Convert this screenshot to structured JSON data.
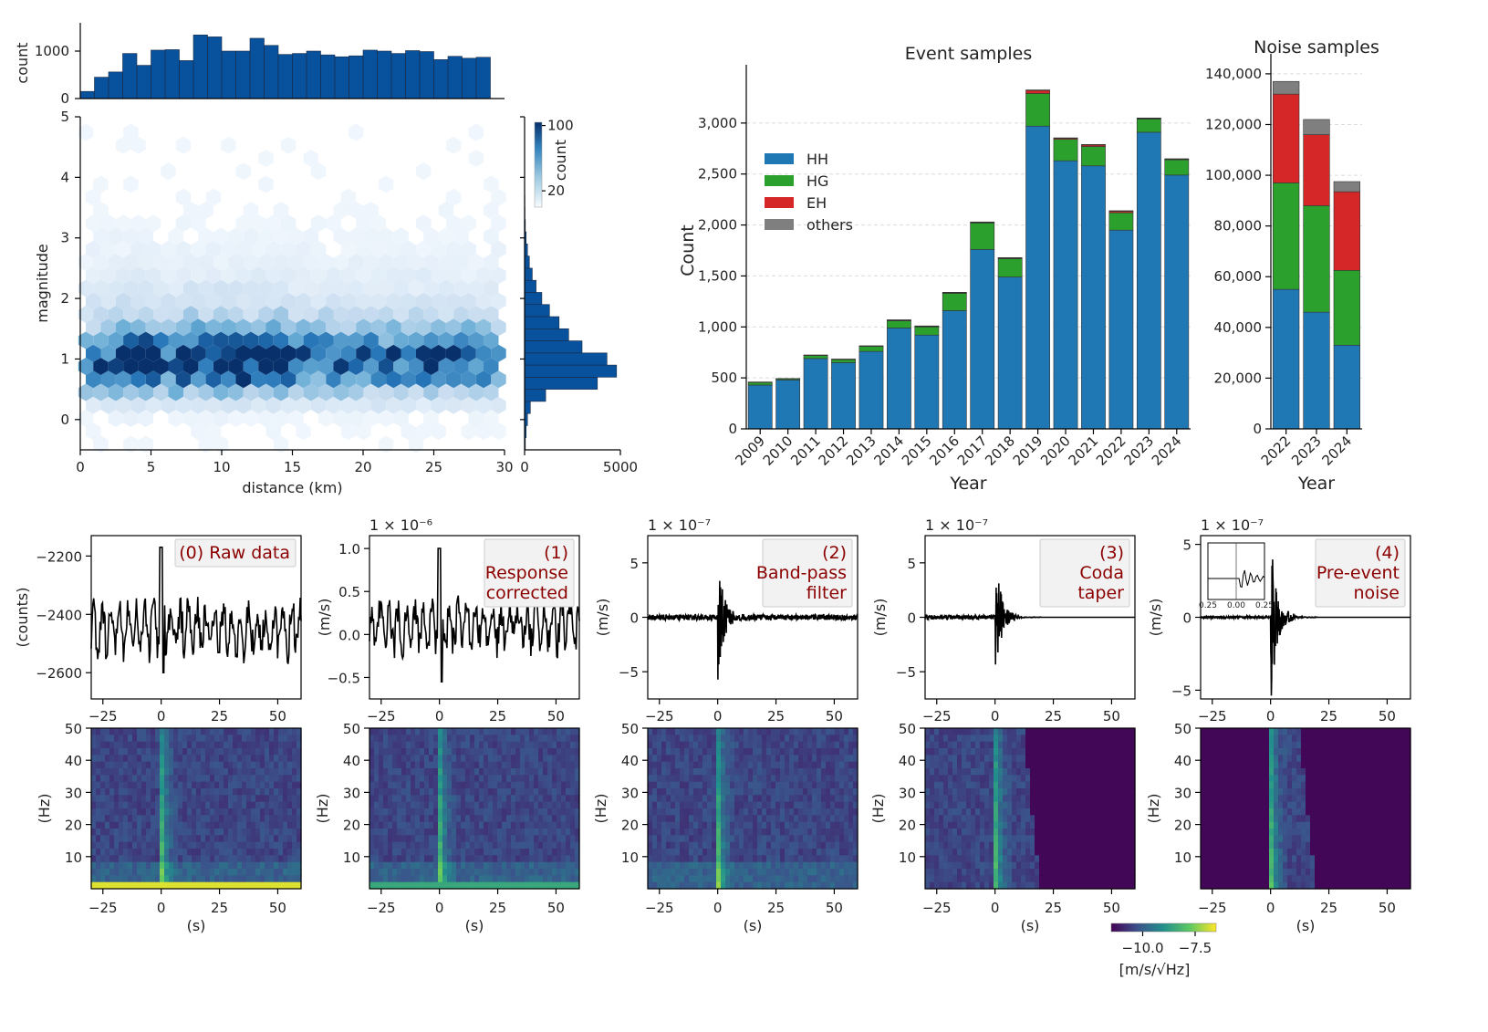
{
  "chart_data": [
    {
      "type": "heatmap",
      "subtype": "hexbin-joint",
      "xlabel": "distance (km)",
      "ylabel": "magnitude",
      "xlim": [
        0,
        30
      ],
      "ylim": [
        -0.5,
        5
      ],
      "xticks": [
        "0",
        "5",
        "10",
        "15",
        "20",
        "25",
        "30"
      ],
      "yticks": [
        "0",
        "1",
        "2",
        "3",
        "4",
        "5"
      ],
      "colorbar": {
        "label": "count",
        "ticks": [
          "20",
          "100"
        ],
        "range": [
          20,
          100
        ],
        "cmap": "Blues"
      },
      "top_histogram": {
        "ylabel": "count",
        "yticks": [
          "0",
          "1000"
        ],
        "ylim": [
          0,
          1500
        ],
        "bin_width_km": 1,
        "values": [
          150,
          450,
          560,
          950,
          700,
          1020,
          1030,
          800,
          1340,
          1300,
          1000,
          1000,
          1270,
          1120,
          930,
          950,
          1000,
          920,
          880,
          900,
          1020,
          1000,
          950,
          1010,
          990,
          820,
          890,
          850,
          870
        ]
      },
      "right_histogram": {
        "xticks": [
          "0",
          "5000"
        ],
        "xlim": [
          0,
          5000
        ],
        "bin_width": 0.2,
        "bin_start": -0.5,
        "values": [
          40,
          80,
          150,
          300,
          1100,
          3800,
          4800,
          4300,
          3000,
          2300,
          1800,
          1300,
          900,
          600,
          400,
          250,
          150,
          80,
          40,
          20,
          15,
          10,
          5,
          3,
          2,
          1,
          1
        ]
      }
    },
    {
      "type": "bar",
      "stacked": true,
      "title": "Event samples",
      "xlabel": "Year",
      "ylabel": "Count",
      "ylim": [
        0,
        3500
      ],
      "yticks": [
        "0",
        "500",
        "1,000",
        "1,500",
        "2,000",
        "2,500",
        "3,000"
      ],
      "grid": "horizontal-dashed",
      "legend": "upper-left",
      "categories": [
        "2009",
        "2010",
        "2011",
        "2012",
        "2013",
        "2014",
        "2015",
        "2016",
        "2017",
        "2018",
        "2019",
        "2020",
        "2021",
        "2022",
        "2023",
        "2024"
      ],
      "series": [
        {
          "name": "HH",
          "color": "#1f77b4",
          "values": [
            430,
            480,
            690,
            650,
            760,
            990,
            920,
            1160,
            1760,
            1490,
            2970,
            2630,
            2580,
            1950,
            2910,
            2490
          ]
        },
        {
          "name": "HG",
          "color": "#2ca02c",
          "values": [
            25,
            10,
            30,
            30,
            50,
            70,
            80,
            170,
            260,
            180,
            320,
            210,
            190,
            170,
            130,
            150
          ]
        },
        {
          "name": "EH",
          "color": "#d62728",
          "values": [
            3,
            2,
            3,
            3,
            3,
            5,
            5,
            5,
            5,
            5,
            30,
            10,
            15,
            15,
            5,
            5
          ]
        },
        {
          "name": "others",
          "color": "#7f7f7f",
          "values": [
            2,
            2,
            2,
            2,
            2,
            5,
            5,
            5,
            5,
            5,
            5,
            5,
            5,
            5,
            5,
            5
          ]
        }
      ]
    },
    {
      "type": "bar",
      "stacked": true,
      "title": "Noise samples",
      "xlabel": "Year",
      "ylim": [
        0,
        145000
      ],
      "yticks": [
        "0",
        "20,000",
        "40,000",
        "60,000",
        "80,000",
        "100,000",
        "120,000",
        "140,000"
      ],
      "grid": "horizontal-dashed",
      "categories": [
        "2022",
        "2023",
        "2024"
      ],
      "series": [
        {
          "name": "HH",
          "color": "#1f77b4",
          "values": [
            55000,
            46000,
            33000
          ]
        },
        {
          "name": "HG",
          "color": "#2ca02c",
          "values": [
            42000,
            42000,
            29500
          ]
        },
        {
          "name": "EH",
          "color": "#d62728",
          "values": [
            35000,
            28000,
            31000
          ]
        },
        {
          "name": "others",
          "color": "#7f7f7f",
          "values": [
            5000,
            6000,
            4000
          ]
        }
      ]
    },
    {
      "type": "line",
      "subtype": "waveform-and-spectrogram-panels",
      "x_tick_labels": [
        "−25",
        "0",
        "25",
        "50"
      ],
      "xlim": [
        -30,
        60
      ],
      "spectrogram_ylabel": "(Hz)",
      "spectrogram_yticks": [
        "10",
        "20",
        "30",
        "40",
        "50"
      ],
      "spectrogram_xlabel": "(s)",
      "colorbar": {
        "ticks": [
          "−10.0",
          "−7.5"
        ],
        "label": "[m/s/√Hz]",
        "cmap": "viridis"
      },
      "panels": [
        {
          "label": "(0) Raw data",
          "ylabel": "(counts)",
          "multiplier": "",
          "yticks": [
            "−2600",
            "−2400",
            "−2200"
          ],
          "yvals": [
            -2600,
            -2400,
            -2200
          ],
          "ylim": [
            -2690,
            -2130
          ],
          "style": "raw"
        },
        {
          "label": "(1)\nResponse\ncorrected",
          "ylabel": "(m/s)",
          "multiplier": "1 × 10⁻⁶",
          "yticks": [
            "−0.5",
            "0.0",
            "0.5",
            "1.0"
          ],
          "yvals": [
            -0.5,
            0,
            0.5,
            1.0
          ],
          "ylim": [
            -0.75,
            1.15
          ],
          "style": "raw"
        },
        {
          "label": "(2)\nBand-pass\nfilter",
          "ylabel": "(m/s)",
          "multiplier": "1 × 10⁻⁷",
          "yticks": [
            "−5",
            "0",
            "5"
          ],
          "yvals": [
            -5,
            0,
            5
          ],
          "ylim": [
            -7.5,
            7.5
          ],
          "style": "event"
        },
        {
          "label": "(3)\nCoda\ntaper",
          "ylabel": "(m/s)",
          "multiplier": "1 × 10⁻⁷",
          "yticks": [
            "−5",
            "0",
            "5"
          ],
          "yvals": [
            -5,
            0,
            5
          ],
          "ylim": [
            -7.5,
            7.5
          ],
          "style": "taper"
        },
        {
          "label": "(4)\nPre-event\nnoise",
          "ylabel": "(m/s)",
          "multiplier": "1 × 10⁻⁷",
          "yticks": [
            "−5",
            "0",
            "5"
          ],
          "yvals": [
            -5,
            0,
            5
          ],
          "ylim": [
            -5.6,
            5.6
          ],
          "style": "taper",
          "inset_ticks": [
            "0.25",
            "0.00",
            "0.25"
          ]
        }
      ]
    }
  ]
}
